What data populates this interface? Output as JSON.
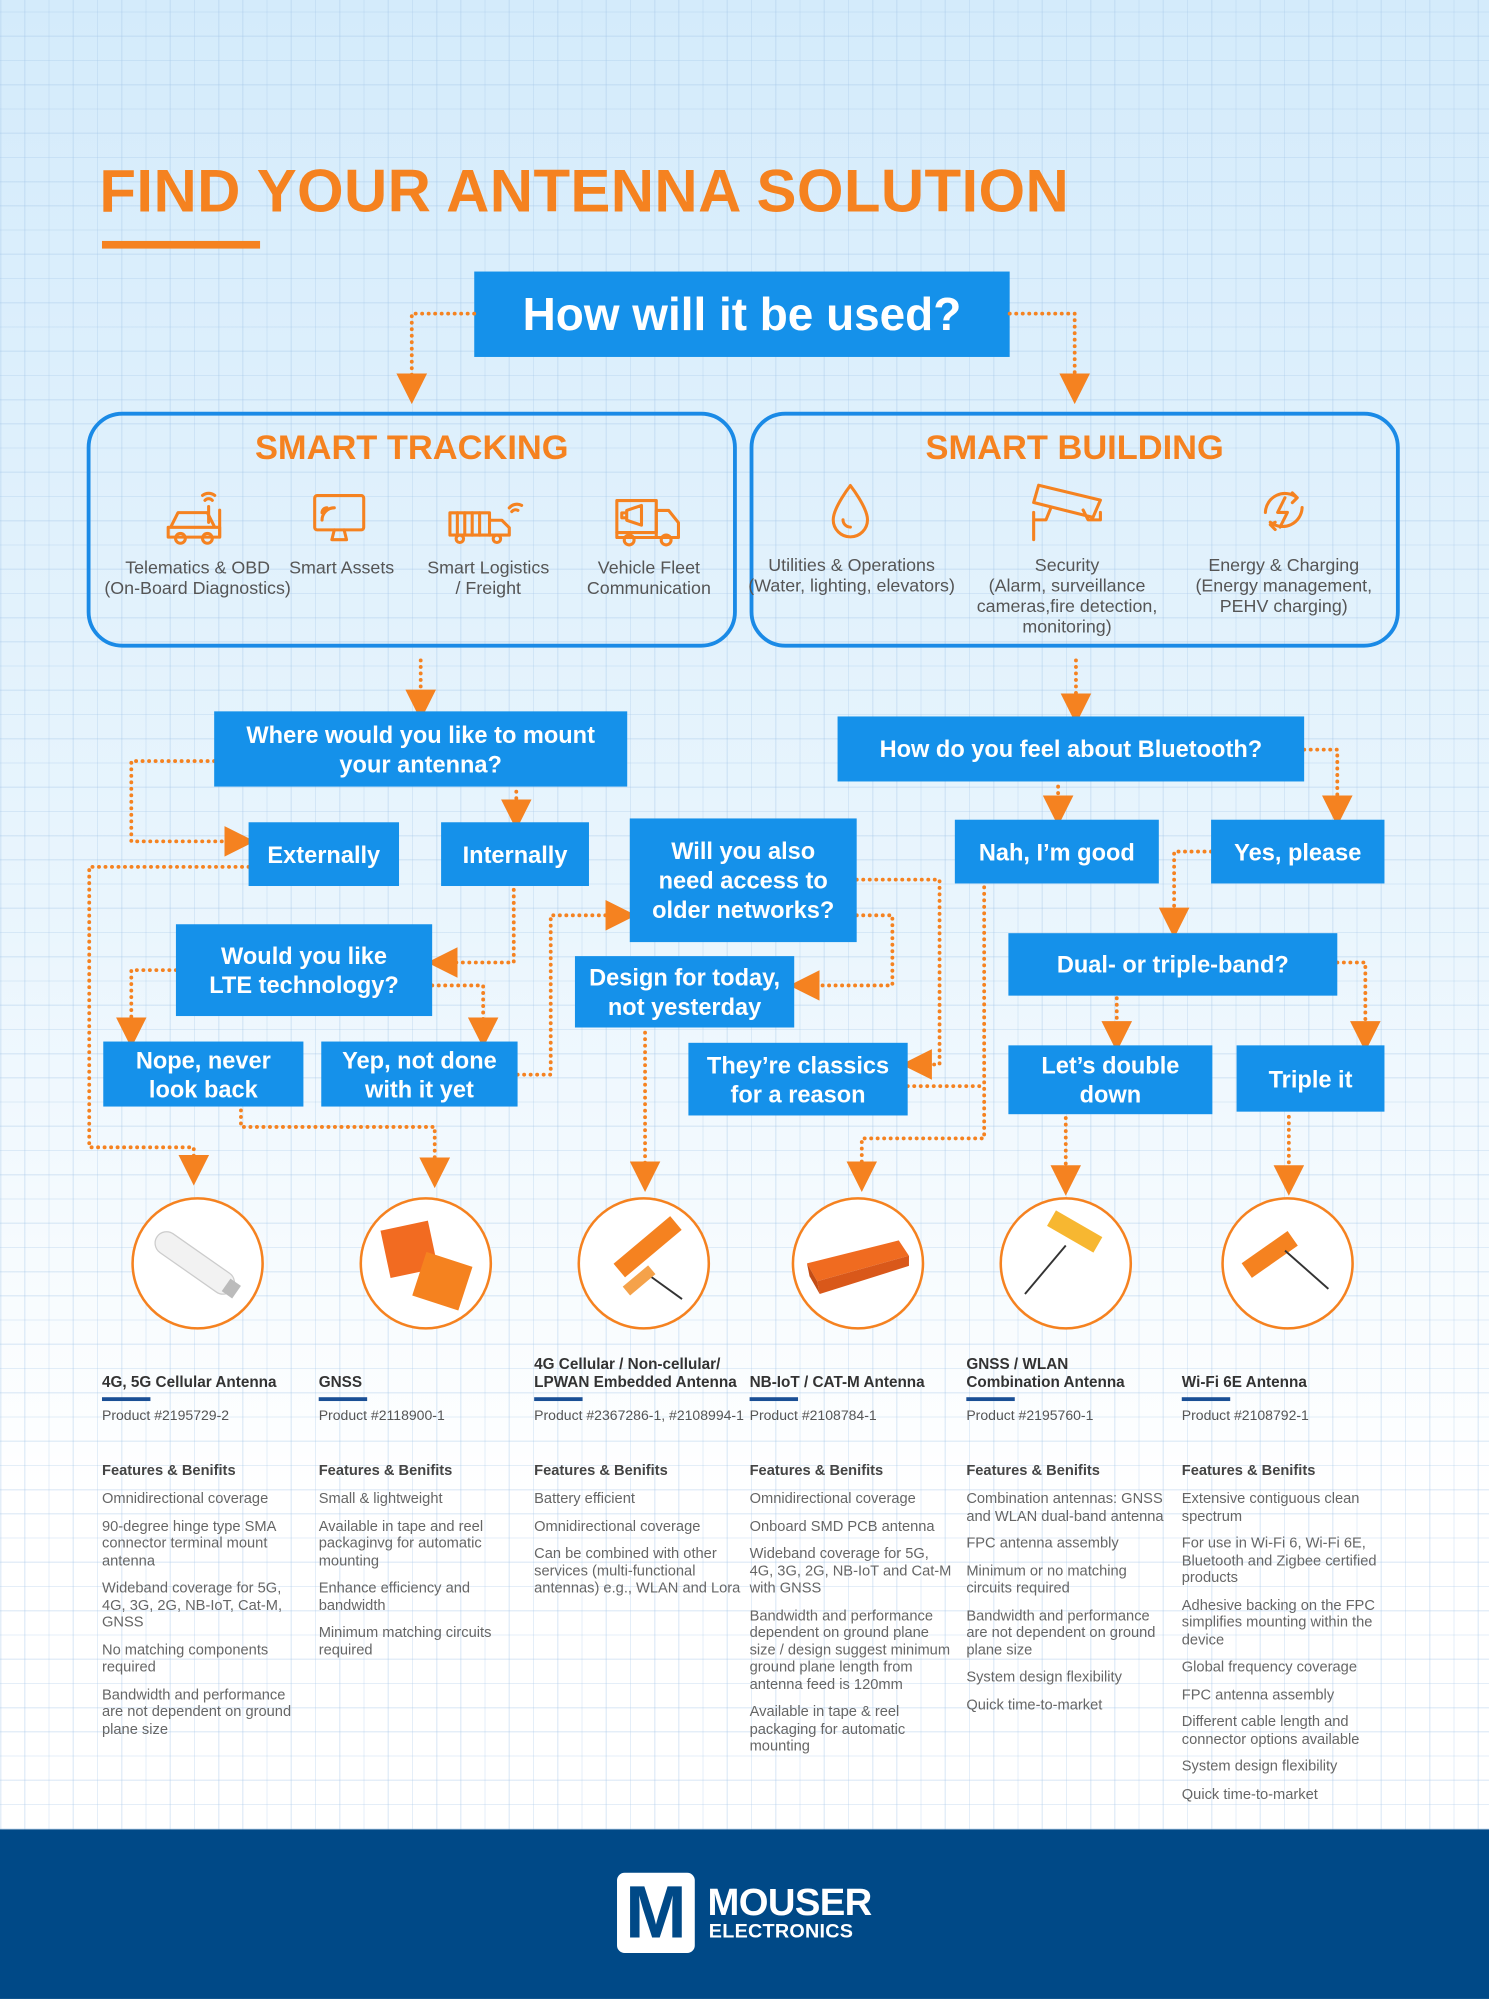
{
  "header": {
    "title": "FIND YOUR ANTENNA SOLUTION"
  },
  "start": "How will it be used?",
  "panels": [
    {
      "title": "SMART TRACKING",
      "items": [
        "Telematics & OBD\n(On-Board Diagnostics)",
        "Smart Assets",
        "Smart Logistics\n/ Freight",
        "Vehicle Fleet\nCommunication"
      ]
    },
    {
      "title": "SMART BUILDING",
      "items": [
        "Utilities & Operations\n(Water, lighting, elevators)",
        "Security\n(Alarm, surveillance\ncameras,fire detection,\nmonitoring)",
        "Energy & Charging\n(Energy management,\nPEHV charging)"
      ]
    }
  ],
  "nodes": [
    "Where would you like to mount\nyour antenna?",
    "How do you feel about Bluetooth?",
    "Externally",
    "Internally",
    "Will you also\nneed access to\nolder networks?",
    "Nah, I’m good",
    "Yes, please",
    "Would you like\nLTE technology?",
    "Design for today,\nnot yesterday",
    "Dual- or triple-band?",
    "Nope, never\nlook back",
    "Yep, not done\nwith it yet",
    "They’re classics\nfor a reason",
    "Let’s double\ndown",
    "Triple it"
  ],
  "products": [
    {
      "name": "4G, 5G Cellular Antenna",
      "number": "Product #2195729-2",
      "features_title": "Features & Benifits",
      "features": [
        "Omnidirectional coverage",
        "90-degree hinge type SMA connector terminal mount antenna",
        "Wideband coverage for 5G, 4G, 3G, 2G, NB-IoT, Cat-M, GNSS",
        "No matching components required",
        "Bandwidth and performance are not dependent on ground plane size"
      ]
    },
    {
      "name": "GNSS",
      "number": "Product #2118900-1",
      "features_title": "Features & Benifits",
      "features": [
        "Small & lightweight",
        "Available in tape and reel packaginvg for automatic mounting",
        "Enhance efficiency and bandwidth",
        "Minimum matching circuits required"
      ]
    },
    {
      "name": "4G Cellular / Non-cellular/\nLPWAN Embedded Antenna",
      "number": "Product #2367286-1, #2108994-1",
      "features_title": "Features & Benifits",
      "features": [
        "Battery efficient",
        "Omnidirectional coverage",
        "Can be combined with other services (multi-functional antennas) e.g., WLAN and Lora"
      ]
    },
    {
      "name": "NB-IoT / CAT-M Antenna",
      "number": "Product #2108784-1",
      "features_title": "Features & Benifits",
      "features": [
        "Omnidirectional coverage",
        "Onboard SMD PCB antenna",
        "Wideband coverage for 5G, 4G, 3G, 2G, NB-IoT and Cat-M with GNSS",
        "Bandwidth and performance dependent on ground plane size / design suggest minimum ground plane length from antenna feed is 120mm",
        "Available in tape & reel packaging for automatic mounting"
      ]
    },
    {
      "name": "GNSS / WLAN\nCombination Antenna",
      "number": "Product #2195760-1",
      "features_title": "Features & Benifits",
      "features": [
        "Combination antennas: GNSS and WLAN dual-band antenna",
        "FPC antenna assembly",
        "Minimum or no matching circuits required",
        "Bandwidth and performance are not dependent on ground plane size",
        "System design flexibility",
        "Quick time-to-market"
      ]
    },
    {
      "name": "Wi-Fi 6E Antenna",
      "number": "Product #2108792-1",
      "features_title": "Features & Benifits",
      "features": [
        "Extensive contiguous clean spectrum",
        "For use in Wi-Fi 6, Wi-Fi 6E, Bluetooth and Zigbee certified products",
        "Adhesive backing on the FPC simplifies mounting within the device",
        "Global frequency coverage",
        "FPC antenna assembly",
        "Different cable length and connector options available",
        "System design flexibility",
        "Quick time-to-market"
      ]
    }
  ],
  "footer": {
    "logo_letter": "M",
    "brand": "MOUSER",
    "sub": "ELECTRONICS"
  }
}
